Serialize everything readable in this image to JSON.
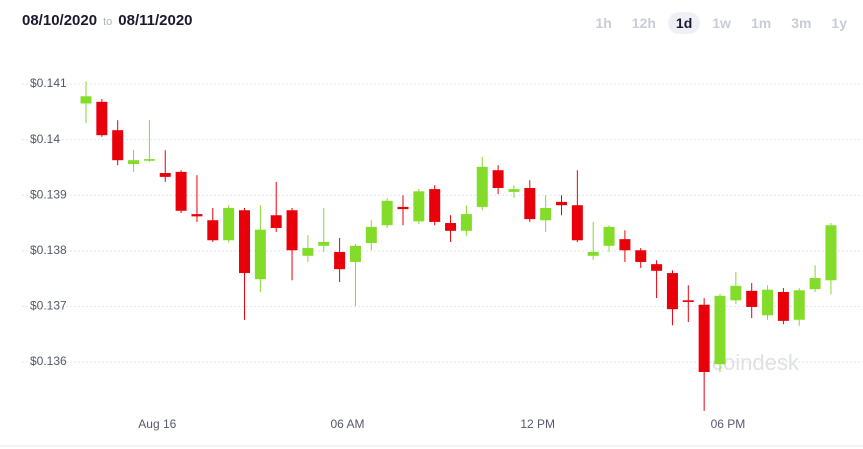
{
  "header": {
    "date_from": "08/10/2020",
    "date_sep": "to",
    "date_to": "08/11/2020",
    "ranges": [
      "1h",
      "12h",
      "1d",
      "1w",
      "1m",
      "3m",
      "1y"
    ],
    "selected_range": "1d"
  },
  "chart_data": {
    "type": "candlestick",
    "watermark": "coindesk",
    "up_color": "#83dc2a",
    "down_color": "#e8000b",
    "grid": true,
    "ylim": [
      0.1345,
      0.1414
    ],
    "yticks": [
      {
        "value": 0.141,
        "label": "$0.141"
      },
      {
        "value": 0.14,
        "label": "$0.14"
      },
      {
        "value": 0.139,
        "label": "$0.139"
      },
      {
        "value": 0.138,
        "label": "$0.138"
      },
      {
        "value": 0.137,
        "label": "$0.137"
      },
      {
        "value": 0.136,
        "label": "$0.136"
      }
    ],
    "categories": [
      null,
      null,
      null,
      null,
      null,
      "Aug 16",
      null,
      null,
      null,
      null,
      null,
      null,
      null,
      null,
      null,
      null,
      null,
      "06 AM",
      null,
      null,
      null,
      null,
      null,
      null,
      null,
      null,
      null,
      null,
      null,
      "12 PM",
      null,
      null,
      null,
      null,
      null,
      null,
      null,
      null,
      null,
      null,
      null,
      "06 PM",
      null,
      null,
      null,
      null,
      null,
      null
    ],
    "open": [
      0.14065,
      0.14068,
      0.14017,
      0.13956,
      0.13962,
      0.1394,
      0.13942,
      0.13866,
      0.13855,
      0.13819,
      0.13873,
      0.13749,
      0.13864,
      0.13873,
      0.13791,
      0.13809,
      0.13798,
      0.1378,
      0.13814,
      0.13846,
      0.13879,
      0.13853,
      0.13911,
      0.1385,
      0.13836,
      0.13879,
      0.13945,
      0.13906,
      0.13913,
      0.13855,
      0.13888,
      0.13882,
      0.13791,
      0.13809,
      0.13821,
      0.13801,
      0.13776,
      0.1376,
      0.13711,
      0.13703,
      0.13596,
      0.13711,
      0.13728,
      0.13684,
      0.13726,
      0.13676,
      0.13731,
      0.13747
    ],
    "high": [
      0.14105,
      0.14073,
      0.14035,
      0.13981,
      0.14035,
      0.13981,
      0.13945,
      0.13936,
      0.13877,
      0.13882,
      0.13877,
      0.13882,
      0.13924,
      0.13877,
      0.13828,
      0.13877,
      0.13823,
      0.13812,
      0.13855,
      0.13895,
      0.139,
      0.13911,
      0.13918,
      0.13864,
      0.13882,
      0.13969,
      0.13954,
      0.13918,
      0.13927,
      0.139,
      0.139,
      0.13945,
      0.13852,
      0.13846,
      0.13837,
      0.13805,
      0.13783,
      0.13765,
      0.13738,
      0.13715,
      0.13722,
      0.13762,
      0.13742,
      0.13738,
      0.13733,
      0.13733,
      0.13774,
      0.1385
    ],
    "low": [
      0.1403,
      0.14005,
      0.13954,
      0.13942,
      0.1396,
      0.13924,
      0.13868,
      0.13852,
      0.13816,
      0.13815,
      0.13676,
      0.13726,
      0.13834,
      0.13747,
      0.1378,
      0.13798,
      0.13744,
      0.137,
      0.13801,
      0.13841,
      0.13846,
      0.13848,
      0.13846,
      0.13816,
      0.13827,
      0.13873,
      0.13902,
      0.13895,
      0.13852,
      0.13834,
      0.13864,
      0.13816,
      0.13784,
      0.13798,
      0.1378,
      0.13769,
      0.13715,
      0.13666,
      0.13672,
      0.13512,
      0.13582,
      0.13704,
      0.13679,
      0.13676,
      0.13668,
      0.13665,
      0.13726,
      0.13722
    ],
    "close": [
      0.14078,
      0.14008,
      0.13963,
      0.13963,
      0.13965,
      0.13933,
      0.13872,
      0.13862,
      0.13819,
      0.13877,
      0.1376,
      0.13838,
      0.13841,
      0.13801,
      0.13805,
      0.13816,
      0.13767,
      0.13809,
      0.13843,
      0.1389,
      0.13875,
      0.13907,
      0.13852,
      0.13836,
      0.13866,
      0.13951,
      0.13913,
      0.13911,
      0.13857,
      0.13877,
      0.13882,
      0.13819,
      0.13798,
      0.13843,
      0.13801,
      0.1378,
      0.13764,
      0.13695,
      0.13708,
      0.13582,
      0.13719,
      0.13737,
      0.13699,
      0.1373,
      0.13674,
      0.13729,
      0.13751,
      0.13846
    ]
  }
}
